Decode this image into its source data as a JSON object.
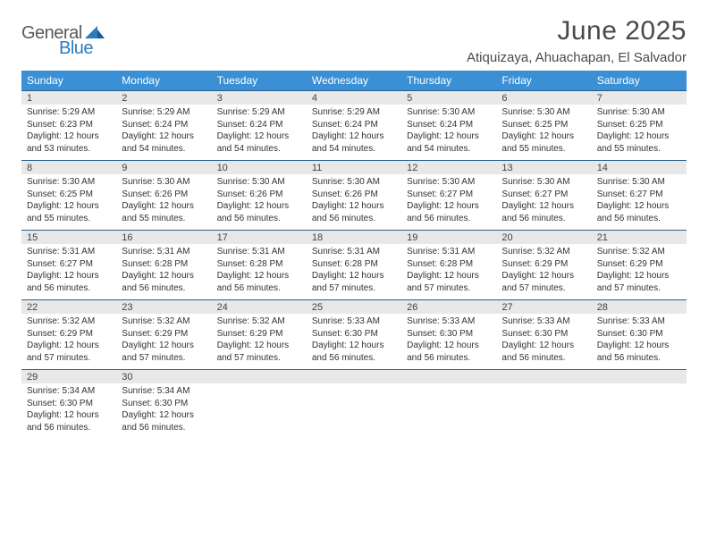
{
  "logo": {
    "general": "General",
    "blue": "Blue"
  },
  "title": "June 2025",
  "location": "Atiquizaya, Ahuachapan, El Salvador",
  "colors": {
    "header_bg": "#3b8fd4",
    "header_text": "#ffffff",
    "daynum_bg": "#e8e8e8",
    "border": "#2b5f87",
    "logo_gray": "#5a5a5a",
    "logo_blue": "#2b7bbf",
    "title_color": "#4a4a4a"
  },
  "day_names": [
    "Sunday",
    "Monday",
    "Tuesday",
    "Wednesday",
    "Thursday",
    "Friday",
    "Saturday"
  ],
  "weeks": [
    [
      {
        "n": "1",
        "sr": "5:29 AM",
        "ss": "6:23 PM",
        "dl": "12 hours and 53 minutes."
      },
      {
        "n": "2",
        "sr": "5:29 AM",
        "ss": "6:24 PM",
        "dl": "12 hours and 54 minutes."
      },
      {
        "n": "3",
        "sr": "5:29 AM",
        "ss": "6:24 PM",
        "dl": "12 hours and 54 minutes."
      },
      {
        "n": "4",
        "sr": "5:29 AM",
        "ss": "6:24 PM",
        "dl": "12 hours and 54 minutes."
      },
      {
        "n": "5",
        "sr": "5:30 AM",
        "ss": "6:24 PM",
        "dl": "12 hours and 54 minutes."
      },
      {
        "n": "6",
        "sr": "5:30 AM",
        "ss": "6:25 PM",
        "dl": "12 hours and 55 minutes."
      },
      {
        "n": "7",
        "sr": "5:30 AM",
        "ss": "6:25 PM",
        "dl": "12 hours and 55 minutes."
      }
    ],
    [
      {
        "n": "8",
        "sr": "5:30 AM",
        "ss": "6:25 PM",
        "dl": "12 hours and 55 minutes."
      },
      {
        "n": "9",
        "sr": "5:30 AM",
        "ss": "6:26 PM",
        "dl": "12 hours and 55 minutes."
      },
      {
        "n": "10",
        "sr": "5:30 AM",
        "ss": "6:26 PM",
        "dl": "12 hours and 56 minutes."
      },
      {
        "n": "11",
        "sr": "5:30 AM",
        "ss": "6:26 PM",
        "dl": "12 hours and 56 minutes."
      },
      {
        "n": "12",
        "sr": "5:30 AM",
        "ss": "6:27 PM",
        "dl": "12 hours and 56 minutes."
      },
      {
        "n": "13",
        "sr": "5:30 AM",
        "ss": "6:27 PM",
        "dl": "12 hours and 56 minutes."
      },
      {
        "n": "14",
        "sr": "5:30 AM",
        "ss": "6:27 PM",
        "dl": "12 hours and 56 minutes."
      }
    ],
    [
      {
        "n": "15",
        "sr": "5:31 AM",
        "ss": "6:27 PM",
        "dl": "12 hours and 56 minutes."
      },
      {
        "n": "16",
        "sr": "5:31 AM",
        "ss": "6:28 PM",
        "dl": "12 hours and 56 minutes."
      },
      {
        "n": "17",
        "sr": "5:31 AM",
        "ss": "6:28 PM",
        "dl": "12 hours and 56 minutes."
      },
      {
        "n": "18",
        "sr": "5:31 AM",
        "ss": "6:28 PM",
        "dl": "12 hours and 57 minutes."
      },
      {
        "n": "19",
        "sr": "5:31 AM",
        "ss": "6:28 PM",
        "dl": "12 hours and 57 minutes."
      },
      {
        "n": "20",
        "sr": "5:32 AM",
        "ss": "6:29 PM",
        "dl": "12 hours and 57 minutes."
      },
      {
        "n": "21",
        "sr": "5:32 AM",
        "ss": "6:29 PM",
        "dl": "12 hours and 57 minutes."
      }
    ],
    [
      {
        "n": "22",
        "sr": "5:32 AM",
        "ss": "6:29 PM",
        "dl": "12 hours and 57 minutes."
      },
      {
        "n": "23",
        "sr": "5:32 AM",
        "ss": "6:29 PM",
        "dl": "12 hours and 57 minutes."
      },
      {
        "n": "24",
        "sr": "5:32 AM",
        "ss": "6:29 PM",
        "dl": "12 hours and 57 minutes."
      },
      {
        "n": "25",
        "sr": "5:33 AM",
        "ss": "6:30 PM",
        "dl": "12 hours and 56 minutes."
      },
      {
        "n": "26",
        "sr": "5:33 AM",
        "ss": "6:30 PM",
        "dl": "12 hours and 56 minutes."
      },
      {
        "n": "27",
        "sr": "5:33 AM",
        "ss": "6:30 PM",
        "dl": "12 hours and 56 minutes."
      },
      {
        "n": "28",
        "sr": "5:33 AM",
        "ss": "6:30 PM",
        "dl": "12 hours and 56 minutes."
      }
    ],
    [
      {
        "n": "29",
        "sr": "5:34 AM",
        "ss": "6:30 PM",
        "dl": "12 hours and 56 minutes."
      },
      {
        "n": "30",
        "sr": "5:34 AM",
        "ss": "6:30 PM",
        "dl": "12 hours and 56 minutes."
      },
      null,
      null,
      null,
      null,
      null
    ]
  ],
  "labels": {
    "sunrise": "Sunrise:",
    "sunset": "Sunset:",
    "daylight": "Daylight:"
  }
}
